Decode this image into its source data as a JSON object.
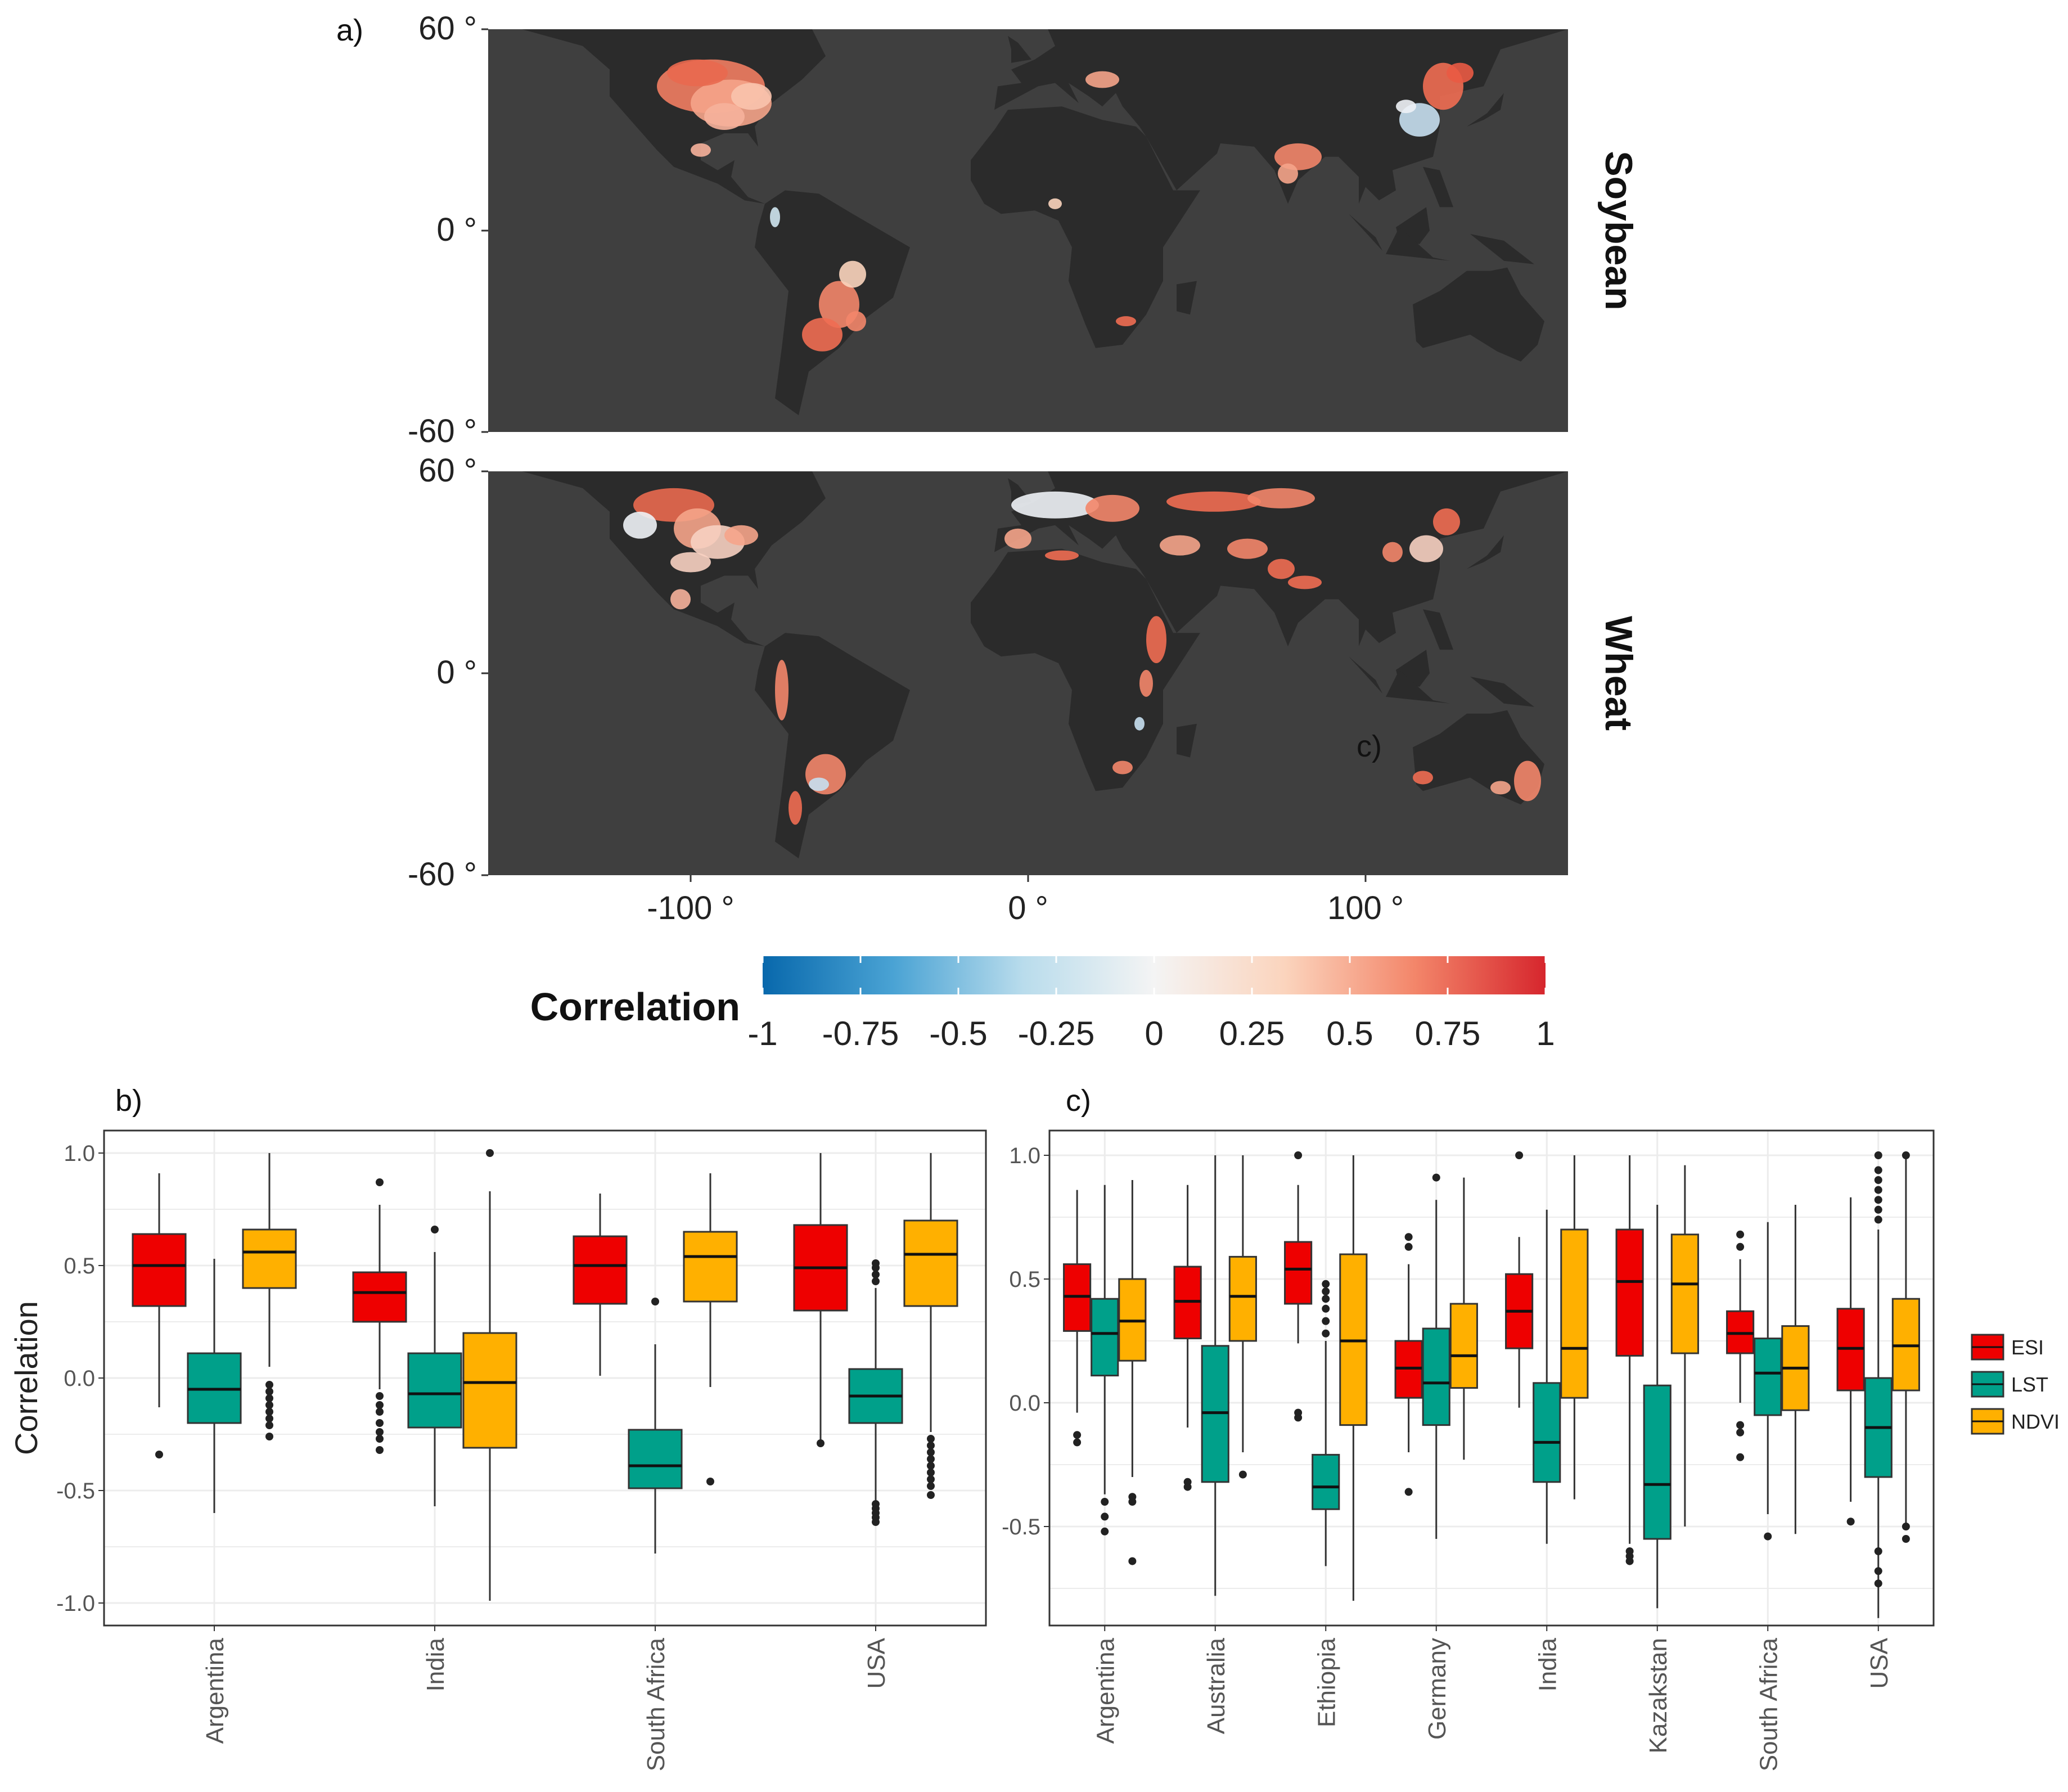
{
  "panel_labels": {
    "a": "a)",
    "b": "b)",
    "c": "c)",
    "c_map": "c)"
  },
  "colors": {
    "map_ocean": "#3f3f3f",
    "map_land": "#2b2b2b",
    "ESI": "#ee0000",
    "LST": "#00a08a",
    "NDVI": "#ffb000",
    "outline": "#222222",
    "grid": "#e6e6e6"
  },
  "chart_data": [
    {
      "type": "heatmap",
      "panel": "a",
      "description_words": "global maps of correlation, two facets",
      "facets": [
        "Soybean",
        "Wheat"
      ],
      "lat_ticks": [
        "60 °",
        "0 °",
        "-60 °"
      ],
      "lon_ticks": [
        "-100 °",
        "0 °",
        "100 °"
      ],
      "xlim": [
        -160,
        160
      ],
      "ylim": [
        -60,
        60
      ],
      "colorbar": {
        "title": "Correlation",
        "ticks": [
          "-1",
          "-0.75",
          "-0.5",
          "-0.25",
          "0",
          "0.25",
          "0.5",
          "0.75",
          "1"
        ],
        "range": [
          -1,
          1
        ],
        "colors": [
          "#0868ac",
          "#4aa3d4",
          "#b9dcec",
          "#f4f4f4",
          "#fbd4bd",
          "#f3866a",
          "#d6262d"
        ]
      }
    },
    {
      "type": "box",
      "panel": "b",
      "ylabel": "Correlation",
      "ylim": [
        -1.1,
        1.1
      ],
      "yticks": [
        "1.0",
        "0.5",
        "0.0",
        "-0.5",
        "-1.0"
      ],
      "categories": [
        "Argentina",
        "India",
        "South Africa",
        "USA"
      ],
      "series": [
        {
          "name": "ESI",
          "boxes": [
            {
              "q1": 0.32,
              "median": 0.5,
              "q3": 0.64,
              "wlo": -0.13,
              "whi": 0.91,
              "outliers": [
                -0.34
              ]
            },
            {
              "q1": 0.25,
              "median": 0.38,
              "q3": 0.47,
              "wlo": -0.05,
              "whi": 0.77,
              "outliers": [
                0.87,
                -0.08,
                -0.12,
                -0.15,
                -0.2,
                -0.24,
                -0.27,
                -0.32
              ]
            },
            {
              "q1": 0.33,
              "median": 0.5,
              "q3": 0.63,
              "wlo": 0.01,
              "whi": 0.82,
              "outliers": []
            },
            {
              "q1": 0.3,
              "median": 0.49,
              "q3": 0.68,
              "wlo": -0.29,
              "whi": 1.0,
              "outliers": [
                -0.29
              ]
            }
          ]
        },
        {
          "name": "LST",
          "boxes": [
            {
              "q1": -0.2,
              "median": -0.05,
              "q3": 0.11,
              "wlo": -0.6,
              "whi": 0.53,
              "outliers": []
            },
            {
              "q1": -0.22,
              "median": -0.07,
              "q3": 0.11,
              "wlo": -0.57,
              "whi": 0.56,
              "outliers": [
                0.66
              ]
            },
            {
              "q1": -0.49,
              "median": -0.39,
              "q3": -0.23,
              "wlo": -0.78,
              "whi": 0.15,
              "outliers": [
                0.34
              ]
            },
            {
              "q1": -0.2,
              "median": -0.08,
              "q3": 0.04,
              "wlo": -0.55,
              "whi": 0.4,
              "outliers": [
                0.43,
                0.46,
                0.49,
                0.51,
                -0.56,
                -0.58,
                -0.6,
                -0.62,
                -0.64
              ]
            }
          ]
        },
        {
          "name": "NDVI",
          "boxes": [
            {
              "q1": 0.4,
              "median": 0.56,
              "q3": 0.66,
              "wlo": 0.05,
              "whi": 1.0,
              "outliers": [
                -0.03,
                -0.06,
                -0.09,
                -0.12,
                -0.15,
                -0.18,
                -0.21,
                -0.26
              ]
            },
            {
              "q1": -0.31,
              "median": -0.02,
              "q3": 0.2,
              "wlo": -0.99,
              "whi": 0.83,
              "outliers": [
                1.0
              ]
            },
            {
              "q1": 0.34,
              "median": 0.54,
              "q3": 0.65,
              "wlo": -0.04,
              "whi": 0.91,
              "outliers": [
                -0.46
              ]
            },
            {
              "q1": 0.32,
              "median": 0.55,
              "q3": 0.7,
              "wlo": -0.24,
              "whi": 1.0,
              "outliers": [
                -0.27,
                -0.3,
                -0.33,
                -0.36,
                -0.39,
                -0.42,
                -0.45,
                -0.48,
                -0.52
              ]
            }
          ]
        }
      ]
    },
    {
      "type": "box",
      "panel": "c",
      "ylabel": "",
      "ylim": [
        -0.9,
        1.1
      ],
      "yticks": [
        "1.0",
        "0.5",
        "0.0",
        "-0.5"
      ],
      "categories": [
        "Argentina",
        "Australia",
        "Ethiopia",
        "Germany",
        "India",
        "Kazakstan",
        "South Africa",
        "USA"
      ],
      "legend": [
        "ESI",
        "LST",
        "NDVI"
      ],
      "series": [
        {
          "name": "ESI",
          "boxes": [
            {
              "q1": 0.29,
              "median": 0.43,
              "q3": 0.56,
              "wlo": -0.04,
              "whi": 0.86,
              "outliers": [
                -0.13,
                -0.16
              ]
            },
            {
              "q1": 0.26,
              "median": 0.41,
              "q3": 0.55,
              "wlo": -0.1,
              "whi": 0.88,
              "outliers": [
                -0.32,
                -0.34
              ]
            },
            {
              "q1": 0.4,
              "median": 0.54,
              "q3": 0.65,
              "wlo": 0.24,
              "whi": 0.88,
              "outliers": [
                1.0,
                -0.04,
                -0.06
              ]
            },
            {
              "q1": 0.02,
              "median": 0.14,
              "q3": 0.25,
              "wlo": -0.2,
              "whi": 0.56,
              "outliers": [
                0.63,
                0.67,
                -0.36
              ]
            },
            {
              "q1": 0.22,
              "median": 0.37,
              "q3": 0.52,
              "wlo": -0.02,
              "whi": 0.67,
              "outliers": [
                1.0
              ]
            },
            {
              "q1": 0.19,
              "median": 0.49,
              "q3": 0.7,
              "wlo": -0.57,
              "whi": 1.0,
              "outliers": [
                -0.6,
                -0.62,
                -0.64
              ]
            },
            {
              "q1": 0.2,
              "median": 0.28,
              "q3": 0.37,
              "wlo": 0.0,
              "whi": 0.58,
              "outliers": [
                0.63,
                0.68,
                -0.09,
                -0.12,
                -0.22
              ]
            },
            {
              "q1": 0.05,
              "median": 0.22,
              "q3": 0.38,
              "wlo": -0.4,
              "whi": 0.83,
              "outliers": [
                -0.48
              ]
            }
          ]
        },
        {
          "name": "LST",
          "boxes": [
            {
              "q1": 0.11,
              "median": 0.28,
              "q3": 0.42,
              "wlo": -0.37,
              "whi": 0.88,
              "outliers": [
                -0.4,
                -0.46,
                -0.52
              ]
            },
            {
              "q1": -0.32,
              "median": -0.04,
              "q3": 0.23,
              "wlo": -0.78,
              "whi": 1.0,
              "outliers": []
            },
            {
              "q1": -0.43,
              "median": -0.34,
              "q3": -0.21,
              "wlo": -0.66,
              "whi": 0.25,
              "outliers": [
                0.48,
                0.45,
                0.42,
                0.38,
                0.33,
                0.28
              ]
            },
            {
              "q1": -0.09,
              "median": 0.08,
              "q3": 0.3,
              "wlo": -0.55,
              "whi": 0.82,
              "outliers": [
                0.91
              ]
            },
            {
              "q1": -0.32,
              "median": -0.16,
              "q3": 0.08,
              "wlo": -0.57,
              "whi": 0.78,
              "outliers": []
            },
            {
              "q1": -0.55,
              "median": -0.33,
              "q3": 0.07,
              "wlo": -0.83,
              "whi": 0.8,
              "outliers": []
            },
            {
              "q1": -0.05,
              "median": 0.12,
              "q3": 0.26,
              "wlo": -0.45,
              "whi": 0.73,
              "outliers": [
                -0.54
              ]
            },
            {
              "q1": -0.3,
              "median": -0.1,
              "q3": 0.1,
              "wlo": -0.87,
              "whi": 0.7,
              "outliers": [
                1.0,
                0.94,
                0.9,
                0.86,
                0.82,
                0.78,
                0.74,
                -0.6,
                -0.68,
                -0.73
              ]
            }
          ]
        },
        {
          "name": "NDVI",
          "boxes": [
            {
              "q1": 0.17,
              "median": 0.33,
              "q3": 0.5,
              "wlo": -0.3,
              "whi": 0.9,
              "outliers": [
                -0.38,
                -0.4,
                -0.64
              ]
            },
            {
              "q1": 0.25,
              "median": 0.43,
              "q3": 0.59,
              "wlo": -0.2,
              "whi": 1.0,
              "outliers": [
                -0.29
              ]
            },
            {
              "q1": -0.09,
              "median": 0.25,
              "q3": 0.6,
              "wlo": -0.8,
              "whi": 1.0,
              "outliers": []
            },
            {
              "q1": 0.06,
              "median": 0.19,
              "q3": 0.4,
              "wlo": -0.23,
              "whi": 0.91,
              "outliers": []
            },
            {
              "q1": 0.02,
              "median": 0.22,
              "q3": 0.7,
              "wlo": -0.39,
              "whi": 1.0,
              "outliers": []
            },
            {
              "q1": 0.2,
              "median": 0.48,
              "q3": 0.68,
              "wlo": -0.5,
              "whi": 0.96,
              "outliers": []
            },
            {
              "q1": -0.03,
              "median": 0.14,
              "q3": 0.31,
              "wlo": -0.53,
              "whi": 0.8,
              "outliers": []
            },
            {
              "q1": 0.05,
              "median": 0.23,
              "q3": 0.42,
              "wlo": -0.5,
              "whi": 1.0,
              "outliers": [
                1.0,
                -0.5,
                -0.55
              ]
            }
          ]
        }
      ]
    }
  ]
}
